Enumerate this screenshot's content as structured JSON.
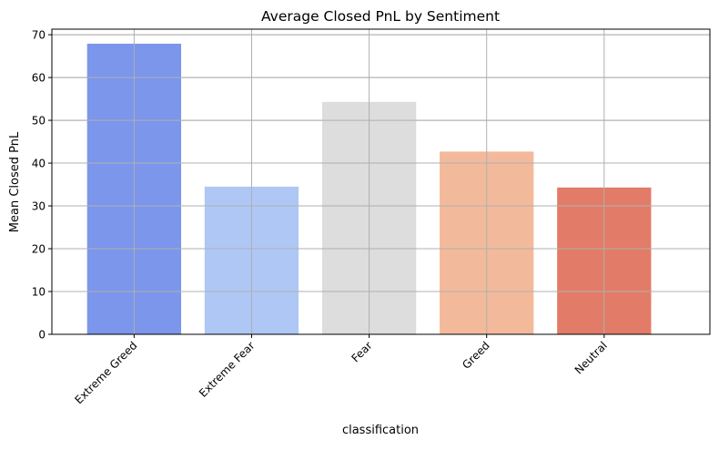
{
  "chart_data": {
    "type": "bar",
    "title": "Average Closed PnL by Sentiment",
    "xlabel": "classification",
    "ylabel": "Mean Closed PnL",
    "categories": [
      "Extreme Greed",
      "Extreme Fear",
      "Fear",
      "Greed",
      "Neutral"
    ],
    "values": [
      67.9,
      34.5,
      54.3,
      42.7,
      34.3
    ],
    "colors": [
      "#7b96ea",
      "#aec7f5",
      "#dddddd",
      "#f2ba9b",
      "#e27b67"
    ],
    "ylim": [
      0,
      71.3
    ],
    "yticks": [
      0,
      10,
      20,
      30,
      40,
      50,
      60,
      70
    ],
    "grid": true,
    "legend": "none"
  }
}
